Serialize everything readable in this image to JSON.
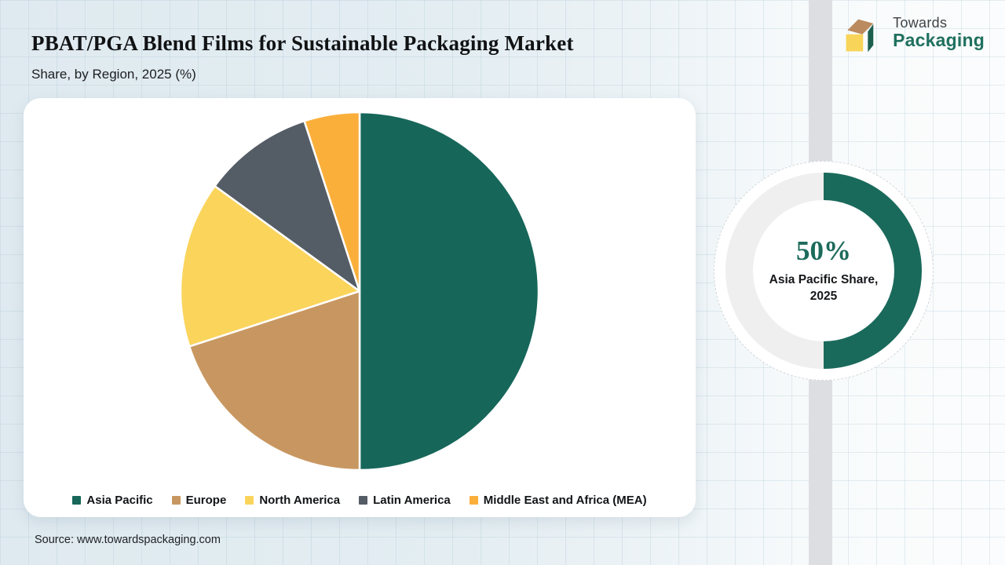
{
  "header": {
    "title": "PBAT/PGA Blend Films for Sustainable Packaging Market",
    "subtitle": "Share, by Region, 2025 (%)"
  },
  "logo": {
    "icon": "box-3d-icon",
    "line1": "Towards",
    "line2": "Packaging",
    "colors": {
      "top": "#bc8a5f",
      "front": "#f8d458",
      "side": "#1c5f4f",
      "name": "#20705f"
    }
  },
  "chart_data": {
    "type": "pie",
    "title": "PBAT/PGA Blend Films for Sustainable Packaging Market",
    "subtitle": "Share, by Region, 2025 (%)",
    "categories": [
      "Asia Pacific",
      "Europe",
      "North America",
      "Latin America",
      "Middle East and Africa (MEA)"
    ],
    "values": [
      50,
      20,
      15,
      10,
      5
    ],
    "colors": [
      "#17665a",
      "#c89761",
      "#fbd45c",
      "#545c66",
      "#fbaf3b"
    ],
    "start_angle_deg": 0,
    "direction": "clockwise",
    "slice_border_color": "#ffffff",
    "legend_position": "bottom"
  },
  "donut": {
    "percent": 50,
    "value_label": "50%",
    "caption_line1": "Asia Pacific Share,",
    "caption_line2": "2025",
    "ring_color": "#1a6a5c",
    "track_color": "#efefef"
  },
  "source": {
    "text": "Source: www.towardspackaging.com"
  }
}
